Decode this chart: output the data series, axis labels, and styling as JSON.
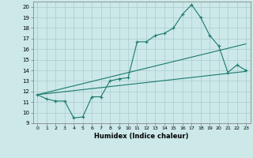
{
  "title": "",
  "xlabel": "Humidex (Indice chaleur)",
  "ylabel": "",
  "bg_color": "#cce8e8",
  "line_color": "#1a7a6e",
  "grid_color": "#aacccc",
  "xlim": [
    -0.5,
    23.5
  ],
  "ylim": [
    9,
    20.5
  ],
  "yticks": [
    9,
    10,
    11,
    12,
    13,
    14,
    15,
    16,
    17,
    18,
    19,
    20
  ],
  "xticks": [
    0,
    1,
    2,
    3,
    4,
    5,
    6,
    7,
    8,
    9,
    10,
    11,
    12,
    13,
    14,
    15,
    16,
    17,
    18,
    19,
    20,
    21,
    22,
    23
  ],
  "line1_x": [
    0,
    1,
    2,
    3,
    4,
    5,
    6,
    7,
    8,
    9,
    10,
    11,
    12,
    13,
    14,
    15,
    16,
    17,
    18,
    19,
    20,
    21,
    22,
    23
  ],
  "line1_y": [
    11.7,
    11.3,
    11.1,
    11.1,
    9.5,
    9.6,
    11.5,
    11.5,
    13.0,
    13.2,
    13.3,
    16.7,
    16.7,
    17.3,
    17.5,
    18.0,
    19.3,
    20.2,
    19.0,
    17.3,
    16.3,
    13.8,
    14.5,
    14.0
  ],
  "line2_x": [
    0,
    23
  ],
  "line2_y": [
    11.7,
    13.9
  ],
  "line3_x": [
    0,
    23
  ],
  "line3_y": [
    11.7,
    16.5
  ],
  "marker": "+"
}
